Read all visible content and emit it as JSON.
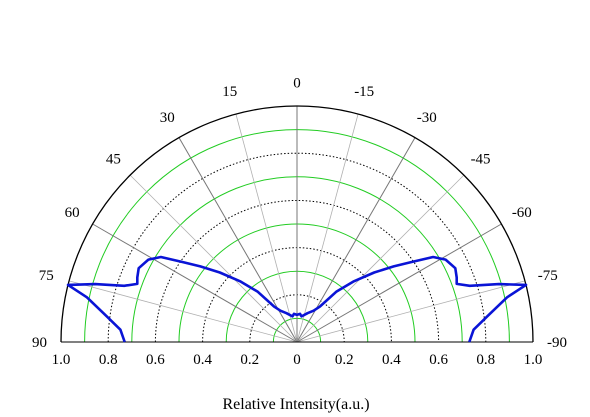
{
  "chart_data": {
    "type": "line",
    "subtype": "polar-half",
    "title": "",
    "xlabel": "Relative Intensity(a.u.)",
    "ylabel": "",
    "radial_range": [
      0,
      1.0
    ],
    "radial_ticks": [
      "1.0",
      "0.8",
      "0.6",
      "0.4",
      "0.2",
      "0",
      "0.2",
      "0.4",
      "0.6",
      "0.8",
      "1.0"
    ],
    "angular_ticks": [
      {
        "angle": 0,
        "label": "0"
      },
      {
        "angle": 15,
        "label": "15"
      },
      {
        "angle": 30,
        "label": "30"
      },
      {
        "angle": 45,
        "label": "45"
      },
      {
        "angle": 60,
        "label": "60"
      },
      {
        "angle": 75,
        "label": "75"
      },
      {
        "angle": 90,
        "label": "90"
      },
      {
        "angle": -15,
        "label": "-15"
      },
      {
        "angle": -30,
        "label": "-30"
      },
      {
        "angle": -45,
        "label": "-45"
      },
      {
        "angle": -60,
        "label": "-60"
      },
      {
        "angle": -75,
        "label": "-75"
      },
      {
        "angle": -90,
        "label": "-90"
      }
    ],
    "grid": true,
    "colors": {
      "series": "#0a14d6",
      "green_grid": "#22cc22",
      "dotted_grid": "#000000",
      "spoke": "#888888",
      "outer_arc": "#000000"
    },
    "series": [
      {
        "points": [
          {
            "angle": -90,
            "r": 0.73
          },
          {
            "angle": -86,
            "r": 0.75
          },
          {
            "angle": -82,
            "r": 0.82
          },
          {
            "angle": -78,
            "r": 0.91
          },
          {
            "angle": -76,
            "r": 1.0
          },
          {
            "angle": -74,
            "r": 0.89
          },
          {
            "angle": -72,
            "r": 0.77
          },
          {
            "angle": -70,
            "r": 0.72
          },
          {
            "angle": -68,
            "r": 0.73
          },
          {
            "angle": -65,
            "r": 0.74
          },
          {
            "angle": -61,
            "r": 0.72
          },
          {
            "angle": -58,
            "r": 0.68
          },
          {
            "angle": -55,
            "r": 0.59
          },
          {
            "angle": -52,
            "r": 0.52
          },
          {
            "angle": -48,
            "r": 0.44
          },
          {
            "angle": -43,
            "r": 0.35
          },
          {
            "angle": -38,
            "r": 0.27
          },
          {
            "angle": -33,
            "r": 0.18
          },
          {
            "angle": -28,
            "r": 0.15
          },
          {
            "angle": -20,
            "r": 0.13
          },
          {
            "angle": -10,
            "r": 0.11
          },
          {
            "angle": -6,
            "r": 0.12
          },
          {
            "angle": 0,
            "r": 0.115
          },
          {
            "angle": 6,
            "r": 0.12
          },
          {
            "angle": 10,
            "r": 0.11
          },
          {
            "angle": 20,
            "r": 0.13
          },
          {
            "angle": 28,
            "r": 0.15
          },
          {
            "angle": 33,
            "r": 0.18
          },
          {
            "angle": 38,
            "r": 0.27
          },
          {
            "angle": 43,
            "r": 0.35
          },
          {
            "angle": 48,
            "r": 0.44
          },
          {
            "angle": 52,
            "r": 0.52
          },
          {
            "angle": 55,
            "r": 0.59
          },
          {
            "angle": 58,
            "r": 0.68
          },
          {
            "angle": 61,
            "r": 0.72
          },
          {
            "angle": 65,
            "r": 0.74
          },
          {
            "angle": 68,
            "r": 0.73
          },
          {
            "angle": 70,
            "r": 0.72
          },
          {
            "angle": 72,
            "r": 0.77
          },
          {
            "angle": 74,
            "r": 0.89
          },
          {
            "angle": 76,
            "r": 1.0
          },
          {
            "angle": 78,
            "r": 0.91
          },
          {
            "angle": 82,
            "r": 0.82
          },
          {
            "angle": 86,
            "r": 0.75
          },
          {
            "angle": 90,
            "r": 0.73
          }
        ]
      }
    ]
  }
}
